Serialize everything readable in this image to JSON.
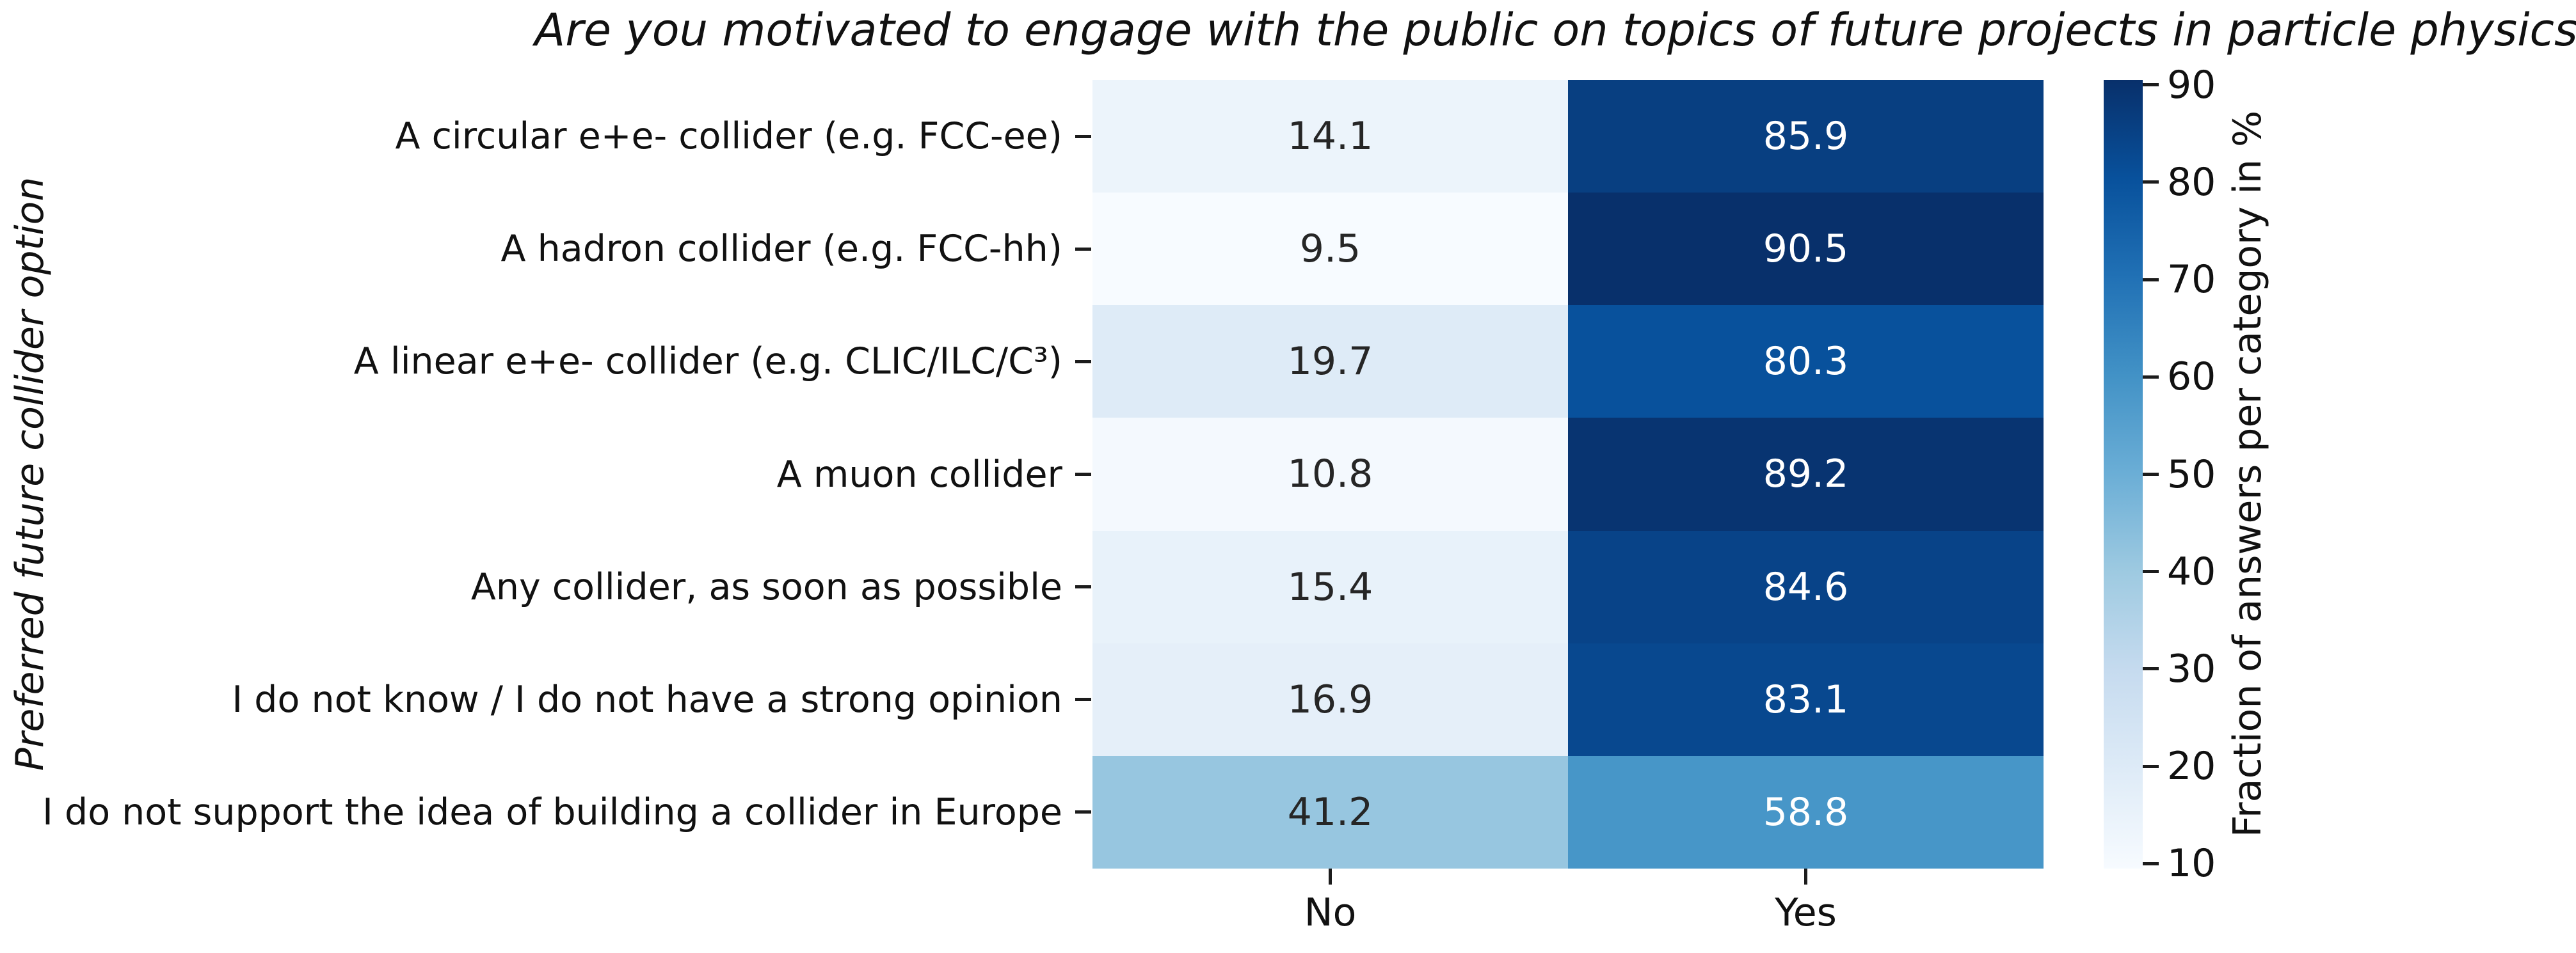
{
  "figure": {
    "title": "Are you motivated to engage with the public on topics of future projects in particle physics?",
    "y_axis_label": "Preferred future collider option"
  },
  "colorbar": {
    "label": "Fraction of answers per category in %",
    "ticks": [
      90,
      80,
      70,
      60,
      50,
      40,
      30,
      20,
      10
    ],
    "vmin": 9.5,
    "vmax": 90.5,
    "colormap": "Blues",
    "gradient_stops_bottom_to_top": [
      "#f7fbff",
      "#deebf7",
      "#c6dbef",
      "#9ecae1",
      "#6baed6",
      "#4292c6",
      "#2171b5",
      "#08519c",
      "#08306b"
    ]
  },
  "chart_data": {
    "type": "heatmap",
    "title": "Are you motivated to engage with the public on topics of future projects in particle physics?",
    "xlabel": "",
    "ylabel": "Preferred future collider option",
    "columns": [
      "No",
      "Yes"
    ],
    "rows": [
      "A circular e+e- collider (e.g. FCC-ee)",
      "A hadron collider (e.g. FCC-hh)",
      "A linear e+e- collider (e.g. CLIC/ILC/C³)",
      "A muon collider",
      "Any collider, as soon as possible",
      "I do not know / I do not have a strong opinion",
      "I do not support the idea of building a collider in Europe"
    ],
    "values": [
      [
        14.1,
        85.9
      ],
      [
        9.5,
        90.5
      ],
      [
        19.7,
        80.3
      ],
      [
        10.8,
        89.2
      ],
      [
        15.4,
        84.6
      ],
      [
        16.9,
        83.1
      ],
      [
        41.2,
        58.8
      ]
    ],
    "value_format": "one_decimal",
    "cell_colors": [
      [
        "#ecf4fb",
        "#083f81"
      ],
      [
        "#f7fbff",
        "#08306b"
      ],
      [
        "#deebf7",
        "#08519c"
      ],
      [
        "#f4f9fe",
        "#083471"
      ],
      [
        "#e8f2fa",
        "#084388"
      ],
      [
        "#e5eff9",
        "#08488f"
      ],
      [
        "#97c6e0",
        "#4796c8"
      ]
    ],
    "cell_text_colors": [
      [
        "#262626",
        "#ffffff"
      ],
      [
        "#262626",
        "#ffffff"
      ],
      [
        "#262626",
        "#ffffff"
      ],
      [
        "#262626",
        "#ffffff"
      ],
      [
        "#262626",
        "#ffffff"
      ],
      [
        "#262626",
        "#ffffff"
      ],
      [
        "#262626",
        "#ffffff"
      ]
    ],
    "legend_position": "right-colorbar",
    "grid": false
  }
}
